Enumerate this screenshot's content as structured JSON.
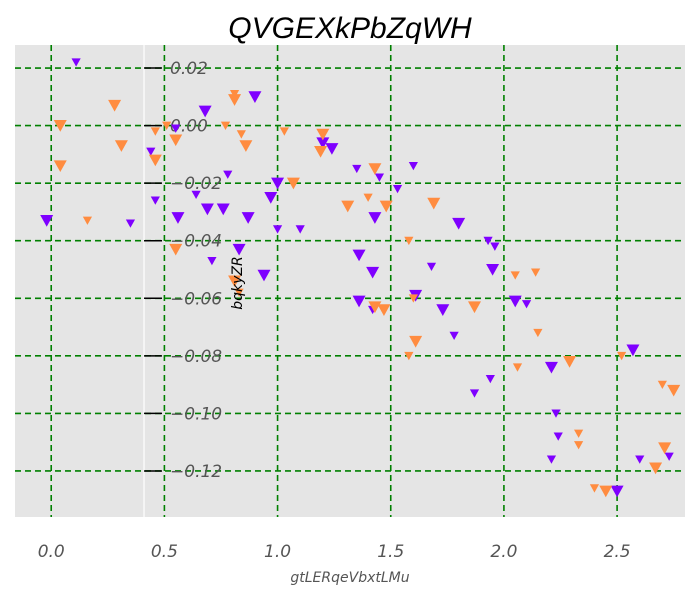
{
  "chart_data": {
    "type": "scatter",
    "title": "QVGEXkPbZqWH",
    "xlabel": "gtLERqeVbxtLMu",
    "ylabel": "bqkyZR",
    "xlim": [
      -0.16,
      2.8
    ],
    "ylim": [
      -0.136,
      0.028
    ],
    "xticks": [
      0.0,
      0.5,
      1.0,
      1.5,
      2.0,
      2.5
    ],
    "xtick_labels": [
      "0.0",
      "0.5",
      "1.0",
      "1.5",
      "2.0",
      "2.5"
    ],
    "yticks": [
      0.02,
      0.0,
      -0.02,
      -0.04,
      -0.06,
      -0.08,
      -0.1,
      -0.12
    ],
    "ytick_labels": [
      "0.02",
      "0.00",
      "−0.02",
      "−0.04",
      "−0.06",
      "−0.08",
      "−0.10",
      "−0.12"
    ],
    "y_axis_position_x": 0.41,
    "grid": true,
    "grid_style": "dashed",
    "grid_color": "#008000",
    "background_color": "#e5e5e5",
    "marker": "triangle-down",
    "series": [
      {
        "color": "#7f00ff",
        "points": [
          [
            0.11,
            0.022,
            "s"
          ],
          [
            -0.02,
            -0.033,
            "l"
          ],
          [
            0.35,
            -0.034,
            "s"
          ],
          [
            0.44,
            -0.009,
            "s"
          ],
          [
            0.46,
            -0.026,
            "s"
          ],
          [
            0.55,
            -0.001,
            "s"
          ],
          [
            0.56,
            -0.032,
            "l"
          ],
          [
            0.64,
            -0.024,
            "s"
          ],
          [
            0.68,
            0.005,
            "l"
          ],
          [
            0.69,
            -0.029,
            "l"
          ],
          [
            0.71,
            -0.047,
            "s"
          ],
          [
            0.76,
            -0.029,
            "l"
          ],
          [
            0.78,
            -0.017,
            "s"
          ],
          [
            0.83,
            -0.043,
            "l"
          ],
          [
            0.87,
            -0.032,
            "l"
          ],
          [
            0.9,
            0.01,
            "l"
          ],
          [
            0.94,
            -0.052,
            "l"
          ],
          [
            0.97,
            -0.025,
            "l"
          ],
          [
            1.0,
            -0.02,
            "l"
          ],
          [
            1.0,
            -0.036,
            "s"
          ],
          [
            1.1,
            -0.036,
            "s"
          ],
          [
            1.2,
            -0.006,
            "l"
          ],
          [
            1.24,
            -0.008,
            "l"
          ],
          [
            1.35,
            -0.015,
            "s"
          ],
          [
            1.36,
            -0.045,
            "l"
          ],
          [
            1.36,
            -0.061,
            "l"
          ],
          [
            1.42,
            -0.051,
            "l"
          ],
          [
            1.42,
            -0.064,
            "s"
          ],
          [
            1.43,
            -0.032,
            "l"
          ],
          [
            1.45,
            -0.018,
            "s"
          ],
          [
            1.53,
            -0.022,
            "s"
          ],
          [
            1.6,
            -0.014,
            "s"
          ],
          [
            1.61,
            -0.059,
            "l"
          ],
          [
            1.68,
            -0.049,
            "s"
          ],
          [
            1.73,
            -0.064,
            "l"
          ],
          [
            1.78,
            -0.073,
            "s"
          ],
          [
            1.8,
            -0.034,
            "l"
          ],
          [
            1.87,
            -0.093,
            "s"
          ],
          [
            1.93,
            -0.04,
            "s"
          ],
          [
            1.94,
            -0.088,
            "s"
          ],
          [
            1.95,
            -0.05,
            "l"
          ],
          [
            1.96,
            -0.042,
            "s"
          ],
          [
            2.05,
            -0.061,
            "l"
          ],
          [
            2.1,
            -0.062,
            "s"
          ],
          [
            2.21,
            -0.084,
            "l"
          ],
          [
            2.21,
            -0.116,
            "s"
          ],
          [
            2.23,
            -0.1,
            "s"
          ],
          [
            2.24,
            -0.108,
            "s"
          ],
          [
            2.5,
            -0.127,
            "l"
          ],
          [
            2.57,
            -0.078,
            "l"
          ],
          [
            2.6,
            -0.116,
            "s"
          ],
          [
            2.73,
            -0.115,
            "s"
          ]
        ]
      },
      {
        "color": "#ff8c40",
        "points": [
          [
            0.04,
            0.0,
            "l"
          ],
          [
            0.04,
            -0.014,
            "l"
          ],
          [
            0.16,
            -0.033,
            "s"
          ],
          [
            0.28,
            0.007,
            "l"
          ],
          [
            0.31,
            -0.007,
            "l"
          ],
          [
            0.46,
            -0.002,
            "s"
          ],
          [
            0.46,
            -0.012,
            "l"
          ],
          [
            0.51,
            0.0,
            "s"
          ],
          [
            0.55,
            -0.005,
            "l"
          ],
          [
            0.55,
            -0.043,
            "l"
          ],
          [
            0.77,
            0.0,
            "s"
          ],
          [
            0.81,
            0.011,
            "s"
          ],
          [
            0.81,
            0.009,
            "l"
          ],
          [
            0.81,
            -0.054,
            "l"
          ],
          [
            0.83,
            -0.058,
            "s"
          ],
          [
            0.84,
            -0.003,
            "s"
          ],
          [
            0.86,
            -0.007,
            "l"
          ],
          [
            1.03,
            -0.002,
            "s"
          ],
          [
            1.07,
            -0.02,
            "l"
          ],
          [
            1.19,
            -0.009,
            "l"
          ],
          [
            1.2,
            -0.003,
            "l"
          ],
          [
            1.31,
            -0.028,
            "l"
          ],
          [
            1.4,
            -0.025,
            "s"
          ],
          [
            1.43,
            -0.015,
            "l"
          ],
          [
            1.43,
            -0.063,
            "l"
          ],
          [
            1.47,
            -0.064,
            "l"
          ],
          [
            1.48,
            -0.028,
            "l"
          ],
          [
            1.58,
            -0.04,
            "s"
          ],
          [
            1.58,
            -0.08,
            "s"
          ],
          [
            1.6,
            -0.06,
            "s"
          ],
          [
            1.61,
            -0.075,
            "l"
          ],
          [
            1.69,
            -0.027,
            "l"
          ],
          [
            1.87,
            -0.063,
            "l"
          ],
          [
            2.05,
            -0.052,
            "s"
          ],
          [
            2.06,
            -0.084,
            "s"
          ],
          [
            2.14,
            -0.051,
            "s"
          ],
          [
            2.15,
            -0.072,
            "s"
          ],
          [
            2.29,
            -0.082,
            "l"
          ],
          [
            2.33,
            -0.107,
            "s"
          ],
          [
            2.33,
            -0.111,
            "s"
          ],
          [
            2.4,
            -0.126,
            "s"
          ],
          [
            2.45,
            -0.127,
            "l"
          ],
          [
            2.52,
            -0.08,
            "s"
          ],
          [
            2.67,
            -0.119,
            "l"
          ],
          [
            2.7,
            -0.09,
            "s"
          ],
          [
            2.71,
            -0.112,
            "l"
          ],
          [
            2.75,
            -0.092,
            "l"
          ]
        ]
      }
    ]
  }
}
